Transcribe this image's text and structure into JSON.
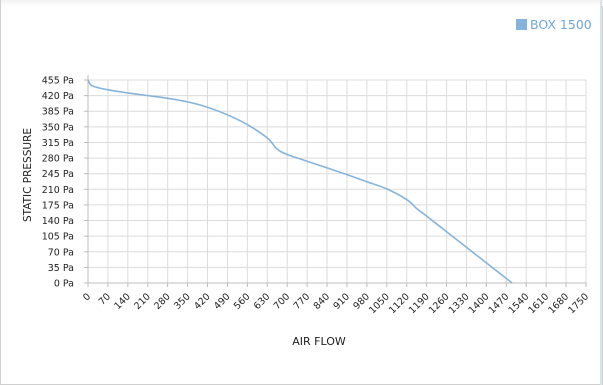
{
  "chart_data": {
    "type": "line",
    "xlabel": "AIR FLOW",
    "ylabel": "STATIC PRESSURE",
    "legend_placement": "top-right",
    "grid": true,
    "x_ticks": [
      0,
      70,
      140,
      210,
      280,
      350,
      420,
      490,
      560,
      630,
      700,
      770,
      840,
      910,
      980,
      1050,
      1120,
      1190,
      1260,
      1330,
      1400,
      1470,
      1540,
      1610,
      1680,
      1750
    ],
    "y_ticks": [
      "0 Pa",
      "35 Pa",
      "70 Pa",
      "105 Pa",
      "140 Pa",
      "175 Pa",
      "210 Pa",
      "245 Pa",
      "280 Pa",
      "315 Pa",
      "350 Pa",
      "385 Pa",
      "420 Pa",
      "455 Pa"
    ],
    "y_tick_values": [
      0,
      35,
      70,
      105,
      140,
      175,
      210,
      245,
      280,
      315,
      350,
      385,
      420,
      455
    ],
    "xlim": [
      0,
      1750
    ],
    "ylim": [
      0,
      455
    ],
    "series": [
      {
        "name": "BOX 1500",
        "color": "#86b3dc",
        "points": [
          [
            0,
            455
          ],
          [
            15,
            442
          ],
          [
            70,
            433
          ],
          [
            140,
            426
          ],
          [
            210,
            420
          ],
          [
            280,
            414
          ],
          [
            350,
            406
          ],
          [
            420,
            394
          ],
          [
            490,
            377
          ],
          [
            560,
            355
          ],
          [
            630,
            325
          ],
          [
            665,
            300
          ],
          [
            700,
            288
          ],
          [
            770,
            273
          ],
          [
            840,
            258
          ],
          [
            910,
            243
          ],
          [
            980,
            227
          ],
          [
            1050,
            211
          ],
          [
            1120,
            187
          ],
          [
            1155,
            167
          ],
          [
            1190,
            150
          ],
          [
            1260,
            115
          ],
          [
            1330,
            80
          ],
          [
            1400,
            45
          ],
          [
            1470,
            10
          ],
          [
            1490,
            0
          ]
        ]
      }
    ]
  }
}
